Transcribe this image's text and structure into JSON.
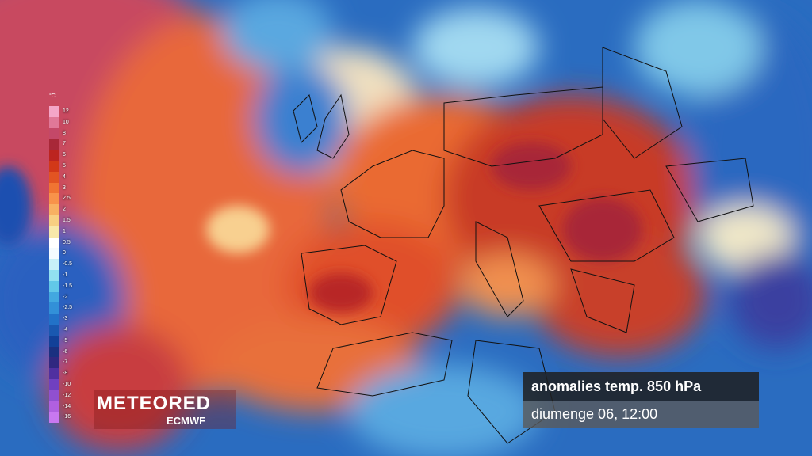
{
  "legend": {
    "unit": "°C",
    "entries": [
      {
        "label": "12",
        "color": "#f4a6c8"
      },
      {
        "label": "10",
        "color": "#e07898"
      },
      {
        "label": "8",
        "color": "#c44868"
      },
      {
        "label": "7",
        "color": "#a82838"
      },
      {
        "label": "6",
        "color": "#bc2420"
      },
      {
        "label": "5",
        "color": "#d23818"
      },
      {
        "label": "4",
        "color": "#e25422"
      },
      {
        "label": "3",
        "color": "#f07432"
      },
      {
        "label": "2.5",
        "color": "#f8924a"
      },
      {
        "label": "2",
        "color": "#f8b062"
      },
      {
        "label": "1.5",
        "color": "#f8cf82"
      },
      {
        "label": "1",
        "color": "#f8e8aa"
      },
      {
        "label": "0.5",
        "color": "#ffffff"
      },
      {
        "label": "0",
        "color": "#f4fbff"
      },
      {
        "label": "-0.5",
        "color": "#c8f0f8"
      },
      {
        "label": "-1",
        "color": "#92e0f0"
      },
      {
        "label": "-1.5",
        "color": "#62c8e8"
      },
      {
        "label": "-2",
        "color": "#42a8e0"
      },
      {
        "label": "-2.5",
        "color": "#3290d8"
      },
      {
        "label": "-3",
        "color": "#2272c8"
      },
      {
        "label": "-4",
        "color": "#1a58b0"
      },
      {
        "label": "-5",
        "color": "#124098"
      },
      {
        "label": "-6",
        "color": "#1a3080"
      },
      {
        "label": "-7",
        "color": "#302880"
      },
      {
        "label": "-8",
        "color": "#5030a0"
      },
      {
        "label": "-10",
        "color": "#7040c0"
      },
      {
        "label": "-12",
        "color": "#9050d0"
      },
      {
        "label": "-14",
        "color": "#b060e0"
      },
      {
        "label": "-16",
        "color": "#c878f0"
      }
    ]
  },
  "logo": {
    "brand": "METEORED",
    "source": "ECMWF"
  },
  "info": {
    "title": "anomalies temp. 850 hPa",
    "time": "diumenge 06, 12:00"
  }
}
